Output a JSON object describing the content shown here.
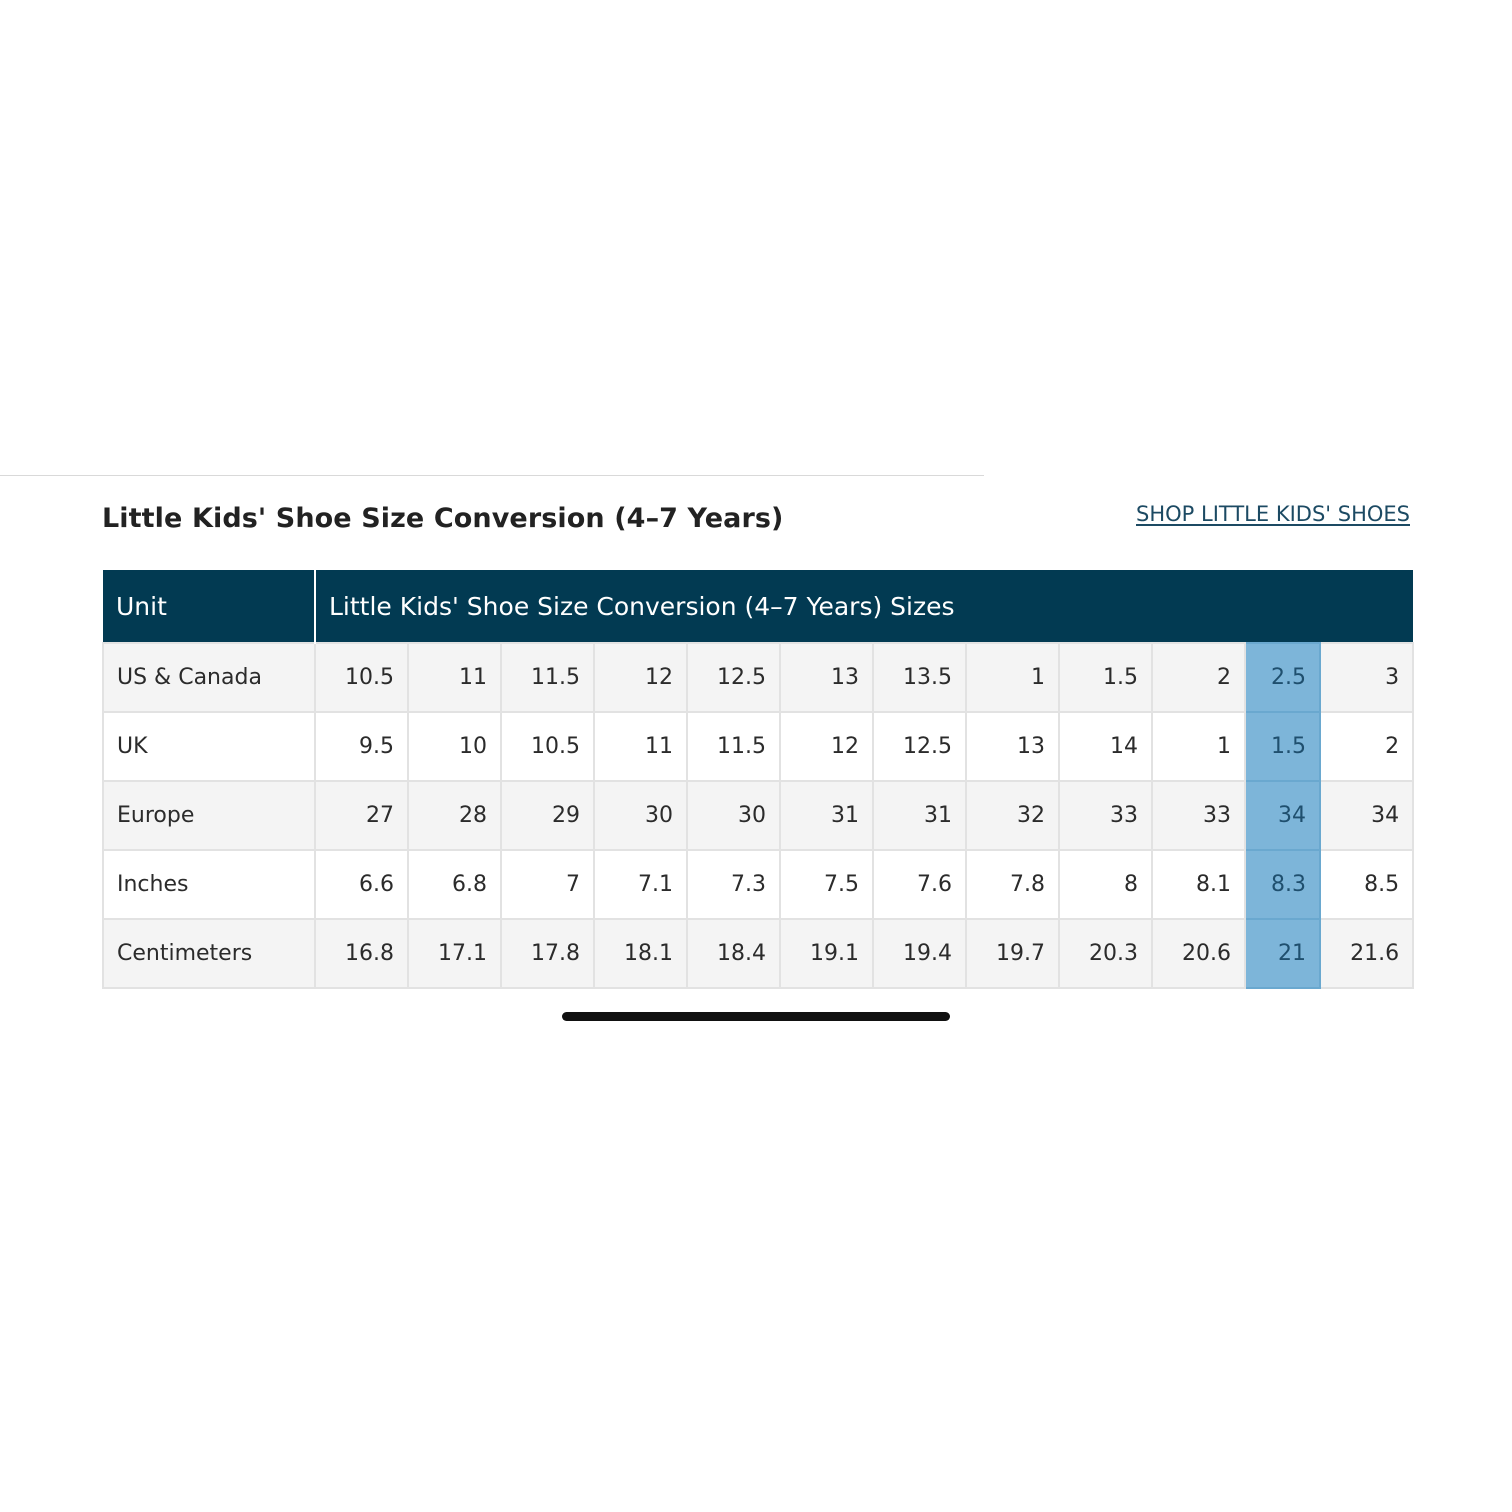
{
  "section_title": "Little Kids' Shoe Size Conversion (4–7 Years)",
  "shop_link": "SHOP LITTLE KIDS' SHOES",
  "table": {
    "header_unit": "Unit",
    "header_sizes": "Little Kids' Shoe Size Conversion (4–7 Years) Sizes",
    "highlight_column": 10,
    "highlight_color": "#7db5d9",
    "header_color": "#023a52",
    "rows": [
      {
        "label": "US & Canada",
        "values": [
          "10.5",
          "11",
          "11.5",
          "12",
          "12.5",
          "13",
          "13.5",
          "1",
          "1.5",
          "2",
          "2.5",
          "3"
        ]
      },
      {
        "label": "UK",
        "values": [
          "9.5",
          "10",
          "10.5",
          "11",
          "11.5",
          "12",
          "12.5",
          "13",
          "14",
          "1",
          "1.5",
          "2"
        ]
      },
      {
        "label": "Europe",
        "values": [
          "27",
          "28",
          "29",
          "30",
          "30",
          "31",
          "31",
          "32",
          "33",
          "33",
          "34",
          "34"
        ]
      },
      {
        "label": "Inches",
        "values": [
          "6.6",
          "6.8",
          "7",
          "7.1",
          "7.3",
          "7.5",
          "7.6",
          "7.8",
          "8",
          "8.1",
          "8.3",
          "8.5"
        ]
      },
      {
        "label": "Centimeters",
        "values": [
          "16.8",
          "17.1",
          "17.8",
          "18.1",
          "18.4",
          "19.1",
          "19.4",
          "19.7",
          "20.3",
          "20.6",
          "21",
          "21.6"
        ]
      }
    ]
  }
}
